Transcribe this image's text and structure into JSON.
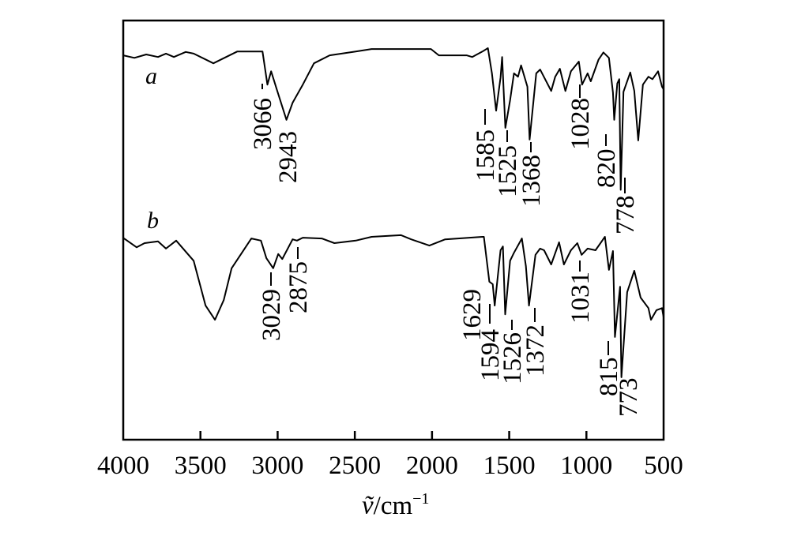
{
  "chart_data": {
    "type": "line",
    "title": "",
    "xlabel": "ṽ/cm⁻¹",
    "xlabel_parts": {
      "symbol": "ṽ",
      "unit": "/cm",
      "exponent": "−1"
    },
    "ylabel": "",
    "xlim": [
      4000,
      500
    ],
    "x_reversed": true,
    "ylim": [
      0,
      100
    ],
    "y_ticks_shown": false,
    "grid": false,
    "x_ticks": [
      "4000",
      "3500",
      "3000",
      "2500",
      "2000",
      "1500",
      "1000",
      "500"
    ],
    "x_tick_values": [
      4000,
      3500,
      3000,
      2500,
      2000,
      1500,
      1000,
      500
    ],
    "line_color": "#000000",
    "series": [
      {
        "name": "a",
        "points": [
          [
            4000,
            91.7
          ],
          [
            3928,
            91.1
          ],
          [
            3851,
            91.9
          ],
          [
            3775,
            91.3
          ],
          [
            3723,
            92.1
          ],
          [
            3672,
            91.3
          ],
          [
            3595,
            92.5
          ],
          [
            3544,
            92.1
          ],
          [
            3416,
            89.8
          ],
          [
            3262,
            92.6
          ],
          [
            3098,
            92.6
          ],
          [
            3066,
            84.7
          ],
          [
            3042,
            87.9
          ],
          [
            3006,
            83.6
          ],
          [
            2943,
            76.3
          ],
          [
            2903,
            80.4
          ],
          [
            2837,
            84.7
          ],
          [
            2765,
            89.8
          ],
          [
            2663,
            91.7
          ],
          [
            2494,
            92.6
          ],
          [
            2391,
            93.2
          ],
          [
            2007,
            93.2
          ],
          [
            1956,
            91.7
          ],
          [
            1776,
            91.7
          ],
          [
            1740,
            91.3
          ],
          [
            1674,
            92.6
          ],
          [
            1638,
            93.4
          ],
          [
            1612,
            87.4
          ],
          [
            1585,
            78.5
          ],
          [
            1556,
            86.4
          ],
          [
            1546,
            91.3
          ],
          [
            1525,
            74.4
          ],
          [
            1494,
            81.0
          ],
          [
            1469,
            87.4
          ],
          [
            1443,
            86.6
          ],
          [
            1423,
            89.3
          ],
          [
            1382,
            84.2
          ],
          [
            1368,
            71.6
          ],
          [
            1325,
            87.4
          ],
          [
            1300,
            88.3
          ],
          [
            1228,
            83.2
          ],
          [
            1202,
            86.6
          ],
          [
            1172,
            88.5
          ],
          [
            1136,
            83.2
          ],
          [
            1100,
            87.9
          ],
          [
            1049,
            90.2
          ],
          [
            1028,
            84.7
          ],
          [
            992,
            87.4
          ],
          [
            972,
            85.5
          ],
          [
            921,
            90.7
          ],
          [
            890,
            92.4
          ],
          [
            854,
            91.1
          ],
          [
            828,
            82.8
          ],
          [
            820,
            76.3
          ],
          [
            800,
            85.0
          ],
          [
            787,
            86.0
          ],
          [
            778,
            59.6
          ],
          [
            760,
            83.0
          ],
          [
            716,
            87.6
          ],
          [
            690,
            83.2
          ],
          [
            664,
            71.4
          ],
          [
            634,
            84.7
          ],
          [
            598,
            86.6
          ],
          [
            572,
            86.0
          ],
          [
            536,
            87.9
          ],
          [
            510,
            84.2
          ],
          [
            500,
            83.6
          ]
        ],
        "annotations": [
          "3066",
          "2943",
          "1585",
          "1525",
          "1368",
          "1028",
          "820",
          "778"
        ]
      },
      {
        "name": "b",
        "points": [
          [
            4000,
            47.8
          ],
          [
            3995,
            48.0
          ],
          [
            3913,
            45.9
          ],
          [
            3862,
            46.9
          ],
          [
            3775,
            47.3
          ],
          [
            3723,
            45.6
          ],
          [
            3657,
            47.5
          ],
          [
            3544,
            42.7
          ],
          [
            3467,
            32.0
          ],
          [
            3406,
            28.6
          ],
          [
            3349,
            33.3
          ],
          [
            3298,
            40.9
          ],
          [
            3170,
            48.0
          ],
          [
            3108,
            47.5
          ],
          [
            3073,
            43.3
          ],
          [
            3029,
            40.9
          ],
          [
            2996,
            44.3
          ],
          [
            2970,
            43.1
          ],
          [
            2903,
            47.8
          ],
          [
            2875,
            47.5
          ],
          [
            2837,
            48.2
          ],
          [
            2714,
            48.0
          ],
          [
            2632,
            46.9
          ],
          [
            2494,
            47.5
          ],
          [
            2391,
            48.4
          ],
          [
            2201,
            48.8
          ],
          [
            2135,
            47.8
          ],
          [
            2017,
            46.3
          ],
          [
            1915,
            47.8
          ],
          [
            1674,
            48.4
          ],
          [
            1664,
            48.4
          ],
          [
            1629,
            37.7
          ],
          [
            1607,
            37.1
          ],
          [
            1594,
            32.0
          ],
          [
            1556,
            45.2
          ],
          [
            1541,
            46.1
          ],
          [
            1526,
            29.9
          ],
          [
            1494,
            42.7
          ],
          [
            1469,
            44.6
          ],
          [
            1418,
            48.0
          ],
          [
            1392,
            41.4
          ],
          [
            1372,
            32.0
          ],
          [
            1330,
            44.1
          ],
          [
            1300,
            45.6
          ],
          [
            1274,
            45.2
          ],
          [
            1228,
            41.8
          ],
          [
            1177,
            47.1
          ],
          [
            1146,
            41.8
          ],
          [
            1100,
            45.2
          ],
          [
            1059,
            46.9
          ],
          [
            1031,
            44.1
          ],
          [
            992,
            45.6
          ],
          [
            941,
            45.2
          ],
          [
            880,
            48.4
          ],
          [
            854,
            40.5
          ],
          [
            828,
            45.0
          ],
          [
            815,
            24.5
          ],
          [
            782,
            36.5
          ],
          [
            773,
            14.9
          ],
          [
            736,
            35.2
          ],
          [
            690,
            40.3
          ],
          [
            649,
            33.9
          ],
          [
            598,
            31.4
          ],
          [
            582,
            28.6
          ],
          [
            546,
            30.9
          ],
          [
            510,
            31.4
          ],
          [
            500,
            29.2
          ]
        ],
        "annotations": [
          "3029",
          "2875",
          "1629",
          "1594",
          "1526",
          "1372",
          "1031",
          "815",
          "773"
        ]
      }
    ]
  }
}
